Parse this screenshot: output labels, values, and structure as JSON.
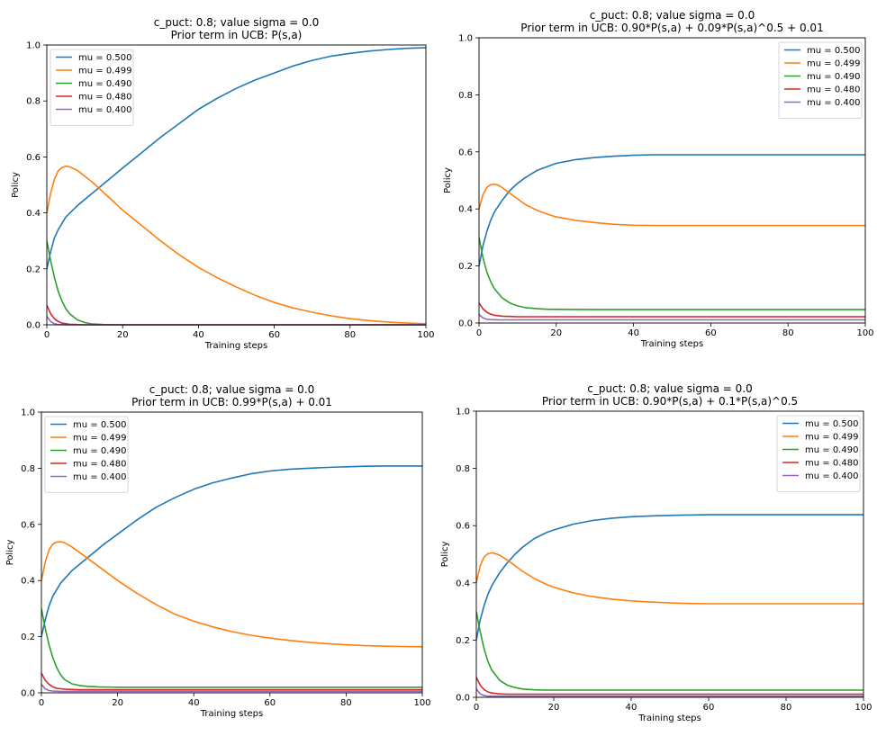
{
  "colors": {
    "mu = 0.500": "#1f77b4",
    "mu = 0.499": "#ff7f0e",
    "mu = 0.490": "#2ca02c",
    "mu = 0.480": "#d62728",
    "mu = 0.400": "#9467bd"
  },
  "chart_data": [
    {
      "type": "line",
      "title": "c_puct: 0.8; value sigma = 0.0",
      "subtitle": "Prior term in UCB: P(s,a)",
      "xlabel": "Training steps",
      "ylabel": "Policy",
      "xlim": [
        0,
        100
      ],
      "ylim": [
        0,
        1.0
      ],
      "xticks": [
        "0",
        "20",
        "40",
        "60",
        "80",
        "100"
      ],
      "yticks": [
        "0.0",
        "0.2",
        "0.4",
        "0.6",
        "0.8",
        "1.0"
      ],
      "legend": "upper-left",
      "series": [
        {
          "name": "mu = 0.500",
          "x": [
            0,
            1,
            2,
            3,
            5,
            8,
            12,
            16,
            20,
            25,
            30,
            35,
            40,
            45,
            50,
            55,
            60,
            65,
            70,
            75,
            80,
            85,
            90,
            95,
            100
          ],
          "values": [
            0.2,
            0.26,
            0.31,
            0.34,
            0.385,
            0.425,
            0.47,
            0.515,
            0.56,
            0.615,
            0.67,
            0.72,
            0.77,
            0.81,
            0.845,
            0.875,
            0.9,
            0.925,
            0.945,
            0.96,
            0.97,
            0.978,
            0.984,
            0.988,
            0.99
          ]
        },
        {
          "name": "mu = 0.499",
          "x": [
            0,
            1,
            2,
            3,
            4,
            5,
            6,
            8,
            12,
            16,
            20,
            25,
            30,
            35,
            40,
            45,
            50,
            55,
            60,
            65,
            70,
            75,
            80,
            85,
            90,
            95,
            100
          ],
          "values": [
            0.4,
            0.47,
            0.52,
            0.55,
            0.562,
            0.567,
            0.565,
            0.552,
            0.51,
            0.46,
            0.41,
            0.355,
            0.3,
            0.25,
            0.205,
            0.168,
            0.135,
            0.105,
            0.08,
            0.06,
            0.045,
            0.032,
            0.022,
            0.015,
            0.01,
            0.006,
            0.004
          ]
        },
        {
          "name": "mu = 0.490",
          "x": [
            0,
            1,
            2,
            3,
            4,
            5,
            6,
            8,
            10,
            12,
            15,
            20,
            30,
            40,
            60,
            80,
            100
          ],
          "values": [
            0.3,
            0.23,
            0.17,
            0.12,
            0.085,
            0.058,
            0.04,
            0.018,
            0.008,
            0.003,
            0.001,
            0,
            0,
            0,
            0,
            0,
            0
          ]
        },
        {
          "name": "mu = 0.480",
          "x": [
            0,
            1,
            2,
            3,
            4,
            6,
            8,
            10,
            20,
            40,
            60,
            80,
            100
          ],
          "values": [
            0.07,
            0.04,
            0.022,
            0.012,
            0.006,
            0.002,
            0.001,
            0,
            0,
            0,
            0,
            0,
            0
          ]
        },
        {
          "name": "mu = 0.400",
          "x": [
            0,
            1,
            2,
            3,
            5,
            10,
            20,
            40,
            60,
            80,
            100
          ],
          "values": [
            0.03,
            0.012,
            0.004,
            0.001,
            0,
            0,
            0,
            0,
            0,
            0,
            0
          ]
        }
      ]
    },
    {
      "type": "line",
      "title": "c_puct: 0.8; value sigma = 0.0",
      "subtitle": "Prior term in UCB: 0.90*P(s,a) + 0.09*P(s,a)^0.5 + 0.01",
      "xlabel": "Training steps",
      "ylabel": "Policy",
      "xlim": [
        0,
        100
      ],
      "ylim": [
        0,
        1.0
      ],
      "xticks": [
        "0",
        "20",
        "40",
        "60",
        "80",
        "100"
      ],
      "yticks": [
        "0.0",
        "0.2",
        "0.4",
        "0.6",
        "0.8",
        "1.0"
      ],
      "legend": "upper-right",
      "series": [
        {
          "name": "mu = 0.500",
          "x": [
            0,
            1,
            2,
            3,
            4,
            6,
            8,
            10,
            12,
            15,
            18,
            20,
            25,
            30,
            35,
            40,
            45,
            50,
            60,
            70,
            80,
            90,
            100
          ],
          "values": [
            0.2,
            0.27,
            0.32,
            0.36,
            0.39,
            0.43,
            0.465,
            0.49,
            0.51,
            0.535,
            0.55,
            0.56,
            0.573,
            0.58,
            0.585,
            0.588,
            0.59,
            0.59,
            0.59,
            0.59,
            0.59,
            0.59,
            0.59
          ]
        },
        {
          "name": "mu = 0.499",
          "x": [
            0,
            1,
            2,
            3,
            4,
            5,
            6,
            8,
            10,
            12,
            15,
            18,
            20,
            25,
            30,
            35,
            40,
            45,
            50,
            60,
            70,
            80,
            90,
            100
          ],
          "values": [
            0.4,
            0.45,
            0.475,
            0.485,
            0.487,
            0.483,
            0.475,
            0.455,
            0.435,
            0.415,
            0.395,
            0.38,
            0.372,
            0.36,
            0.352,
            0.346,
            0.343,
            0.342,
            0.342,
            0.342,
            0.342,
            0.342,
            0.342,
            0.342
          ]
        },
        {
          "name": "mu = 0.490",
          "x": [
            0,
            1,
            2,
            3,
            4,
            6,
            8,
            10,
            12,
            15,
            18,
            20,
            30,
            40,
            60,
            80,
            100
          ],
          "values": [
            0.3,
            0.23,
            0.18,
            0.145,
            0.12,
            0.088,
            0.07,
            0.06,
            0.054,
            0.05,
            0.048,
            0.048,
            0.047,
            0.047,
            0.047,
            0.047,
            0.047
          ]
        },
        {
          "name": "mu = 0.480",
          "x": [
            0,
            1,
            2,
            3,
            4,
            6,
            8,
            10,
            20,
            40,
            60,
            80,
            100
          ],
          "values": [
            0.07,
            0.05,
            0.038,
            0.031,
            0.027,
            0.024,
            0.023,
            0.022,
            0.022,
            0.022,
            0.022,
            0.022,
            0.022
          ]
        },
        {
          "name": "mu = 0.400",
          "x": [
            0,
            1,
            2,
            3,
            5,
            10,
            20,
            40,
            60,
            80,
            100
          ],
          "values": [
            0.03,
            0.018,
            0.013,
            0.012,
            0.011,
            0.011,
            0.011,
            0.011,
            0.011,
            0.011,
            0.011
          ]
        }
      ]
    },
    {
      "type": "line",
      "title": "c_puct: 0.8; value sigma = 0.0",
      "subtitle": "Prior term in UCB: 0.99*P(s,a) + 0.01",
      "xlabel": "Training steps",
      "ylabel": "Policy",
      "xlim": [
        0,
        100
      ],
      "ylim": [
        0,
        1.0
      ],
      "xticks": [
        "0",
        "20",
        "40",
        "60",
        "80",
        "100"
      ],
      "yticks": [
        "0.0",
        "0.2",
        "0.4",
        "0.6",
        "0.8",
        "1.0"
      ],
      "legend": "upper-left",
      "series": [
        {
          "name": "mu = 0.500",
          "x": [
            0,
            1,
            2,
            3,
            5,
            8,
            12,
            16,
            20,
            25,
            30,
            35,
            40,
            45,
            50,
            55,
            60,
            65,
            70,
            75,
            80,
            85,
            90,
            95,
            100
          ],
          "values": [
            0.2,
            0.26,
            0.31,
            0.345,
            0.39,
            0.435,
            0.48,
            0.525,
            0.565,
            0.615,
            0.66,
            0.695,
            0.725,
            0.748,
            0.765,
            0.78,
            0.79,
            0.796,
            0.8,
            0.803,
            0.805,
            0.807,
            0.808,
            0.808,
            0.808
          ]
        },
        {
          "name": "mu = 0.499",
          "x": [
            0,
            1,
            2,
            3,
            4,
            5,
            6,
            8,
            12,
            16,
            20,
            25,
            30,
            35,
            40,
            45,
            50,
            55,
            60,
            65,
            70,
            75,
            80,
            85,
            90,
            95,
            100
          ],
          "values": [
            0.4,
            0.465,
            0.51,
            0.53,
            0.537,
            0.538,
            0.535,
            0.52,
            0.48,
            0.44,
            0.4,
            0.355,
            0.315,
            0.28,
            0.255,
            0.235,
            0.218,
            0.205,
            0.195,
            0.187,
            0.18,
            0.175,
            0.171,
            0.168,
            0.166,
            0.165,
            0.164
          ]
        },
        {
          "name": "mu = 0.490",
          "x": [
            0,
            1,
            2,
            3,
            4,
            5,
            6,
            8,
            10,
            12,
            15,
            20,
            30,
            40,
            60,
            80,
            100
          ],
          "values": [
            0.3,
            0.23,
            0.17,
            0.125,
            0.09,
            0.065,
            0.048,
            0.032,
            0.026,
            0.023,
            0.021,
            0.02,
            0.02,
            0.02,
            0.02,
            0.02,
            0.02
          ]
        },
        {
          "name": "mu = 0.480",
          "x": [
            0,
            1,
            2,
            3,
            4,
            6,
            8,
            10,
            20,
            40,
            60,
            80,
            100
          ],
          "values": [
            0.07,
            0.045,
            0.03,
            0.021,
            0.016,
            0.013,
            0.012,
            0.011,
            0.011,
            0.011,
            0.011,
            0.011,
            0.011
          ]
        },
        {
          "name": "mu = 0.400",
          "x": [
            0,
            1,
            2,
            3,
            5,
            10,
            20,
            40,
            60,
            80,
            100
          ],
          "values": [
            0.03,
            0.014,
            0.008,
            0.006,
            0.005,
            0.005,
            0.005,
            0.005,
            0.005,
            0.005,
            0.005
          ]
        }
      ]
    },
    {
      "type": "line",
      "title": "c_puct: 0.8; value sigma = 0.0",
      "subtitle": "Prior term in UCB: 0.90*P(s,a) + 0.1*P(s,a)^0.5",
      "xlabel": "Training steps",
      "ylabel": "Policy",
      "xlim": [
        0,
        100
      ],
      "ylim": [
        0,
        1.0
      ],
      "xticks": [
        "0",
        "20",
        "40",
        "60",
        "80",
        "100"
      ],
      "yticks": [
        "0.0",
        "0.2",
        "0.4",
        "0.6",
        "0.8",
        "1.0"
      ],
      "legend": "upper-right",
      "series": [
        {
          "name": "mu = 0.500",
          "x": [
            0,
            1,
            2,
            3,
            4,
            6,
            8,
            10,
            12,
            15,
            18,
            20,
            25,
            30,
            35,
            40,
            45,
            50,
            55,
            60,
            70,
            80,
            90,
            100
          ],
          "values": [
            0.2,
            0.27,
            0.32,
            0.36,
            0.39,
            0.435,
            0.47,
            0.5,
            0.525,
            0.555,
            0.575,
            0.585,
            0.605,
            0.618,
            0.626,
            0.631,
            0.634,
            0.636,
            0.637,
            0.638,
            0.638,
            0.638,
            0.638,
            0.638
          ]
        },
        {
          "name": "mu = 0.499",
          "x": [
            0,
            1,
            2,
            3,
            4,
            5,
            6,
            8,
            10,
            12,
            15,
            18,
            20,
            25,
            30,
            35,
            40,
            45,
            50,
            55,
            60,
            70,
            80,
            90,
            100
          ],
          "values": [
            0.4,
            0.46,
            0.49,
            0.502,
            0.505,
            0.502,
            0.497,
            0.48,
            0.46,
            0.44,
            0.415,
            0.395,
            0.385,
            0.365,
            0.352,
            0.343,
            0.337,
            0.333,
            0.33,
            0.328,
            0.327,
            0.327,
            0.327,
            0.327,
            0.327
          ]
        },
        {
          "name": "mu = 0.490",
          "x": [
            0,
            1,
            2,
            3,
            4,
            6,
            8,
            10,
            12,
            15,
            18,
            20,
            30,
            40,
            60,
            80,
            100
          ],
          "values": [
            0.3,
            0.23,
            0.17,
            0.125,
            0.095,
            0.06,
            0.042,
            0.034,
            0.029,
            0.026,
            0.025,
            0.025,
            0.025,
            0.025,
            0.025,
            0.025,
            0.025
          ]
        },
        {
          "name": "mu = 0.480",
          "x": [
            0,
            1,
            2,
            3,
            4,
            6,
            8,
            10,
            20,
            40,
            60,
            80,
            100
          ],
          "values": [
            0.07,
            0.042,
            0.027,
            0.019,
            0.015,
            0.012,
            0.011,
            0.011,
            0.011,
            0.011,
            0.011,
            0.011,
            0.011
          ]
        },
        {
          "name": "mu = 0.400",
          "x": [
            0,
            1,
            2,
            3,
            5,
            10,
            20,
            40,
            60,
            80,
            100
          ],
          "values": [
            0.03,
            0.012,
            0.006,
            0.004,
            0.004,
            0.004,
            0.004,
            0.004,
            0.004,
            0.004,
            0.004
          ]
        }
      ]
    }
  ]
}
